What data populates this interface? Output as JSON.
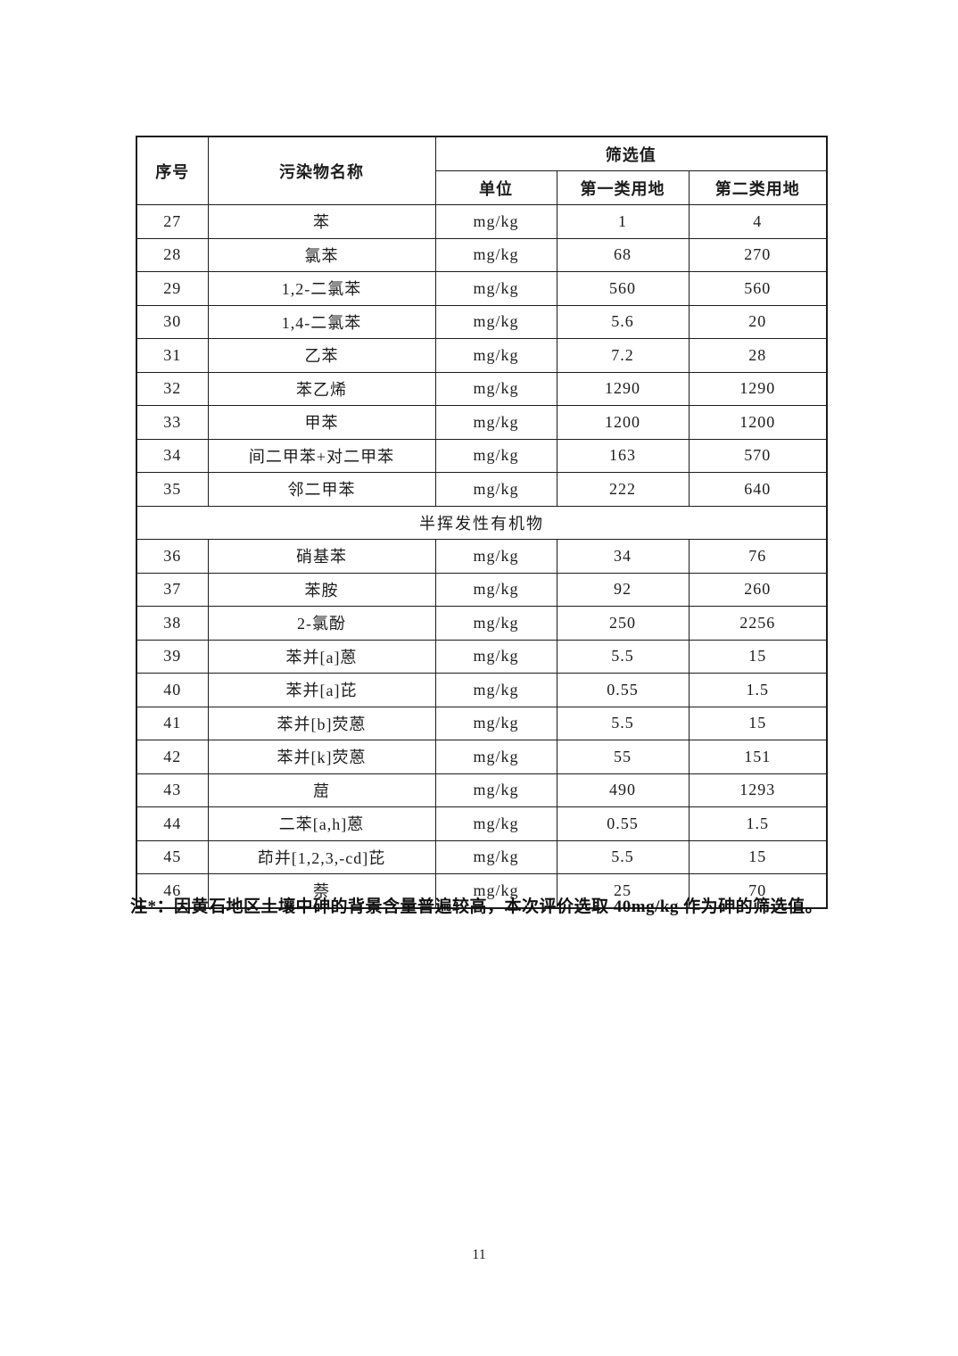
{
  "page": {
    "number": "11",
    "note": "注*：因黄石地区土壤中砷的背景含量普遍较高，本次评价选取 40mg/kg 作为砷的筛选值。"
  },
  "table": {
    "headers": {
      "index": "序号",
      "pollutant": "污染物名称",
      "screening": "筛选值",
      "unit": "单位",
      "land1": "第一类用地",
      "land2": "第二类用地"
    },
    "rows": [
      {
        "cells": [
          "27",
          "苯",
          "mg/kg",
          "1",
          "4"
        ]
      },
      {
        "cells": [
          "28",
          "氯苯",
          "mg/kg",
          "68",
          "270"
        ]
      },
      {
        "cells": [
          "29",
          "1,2-二氯苯",
          "mg/kg",
          "560",
          "560"
        ]
      },
      {
        "cells": [
          "30",
          "1,4-二氯苯",
          "mg/kg",
          "5.6",
          "20"
        ]
      },
      {
        "cells": [
          "31",
          "乙苯",
          "mg/kg",
          "7.2",
          "28"
        ]
      },
      {
        "cells": [
          "32",
          "苯乙烯",
          "mg/kg",
          "1290",
          "1290"
        ]
      },
      {
        "cells": [
          "33",
          "甲苯",
          "mg/kg",
          "1200",
          "1200"
        ]
      },
      {
        "cells": [
          "34",
          "间二甲苯+对二甲苯",
          "mg/kg",
          "163",
          "570"
        ]
      },
      {
        "cells": [
          "35",
          "邻二甲苯",
          "mg/kg",
          "222",
          "640"
        ]
      },
      {
        "section": "半挥发性有机物"
      },
      {
        "cells": [
          "36",
          "硝基苯",
          "mg/kg",
          "34",
          "76"
        ]
      },
      {
        "cells": [
          "37",
          "苯胺",
          "mg/kg",
          "92",
          "260"
        ]
      },
      {
        "cells": [
          "38",
          "2-氯酚",
          "mg/kg",
          "250",
          "2256"
        ]
      },
      {
        "cells": [
          "39",
          "苯并[a]蒽",
          "mg/kg",
          "5.5",
          "15"
        ]
      },
      {
        "cells": [
          "40",
          "苯并[a]芘",
          "mg/kg",
          "0.55",
          "1.5"
        ]
      },
      {
        "cells": [
          "41",
          "苯并[b]荧蒽",
          "mg/kg",
          "5.5",
          "15"
        ]
      },
      {
        "cells": [
          "42",
          "苯并[k]荧蒽",
          "mg/kg",
          "55",
          "151"
        ]
      },
      {
        "cells": [
          "43",
          "䓛",
          "mg/kg",
          "490",
          "1293"
        ]
      },
      {
        "cells": [
          "44",
          "二苯[a,h]蒽",
          "mg/kg",
          "0.55",
          "1.5"
        ]
      },
      {
        "cells": [
          "45",
          "茚并[1,2,3,-cd]芘",
          "mg/kg",
          "5.5",
          "15"
        ]
      },
      {
        "cells": [
          "46",
          "萘",
          "mg/kg",
          "25",
          "70"
        ]
      }
    ]
  }
}
